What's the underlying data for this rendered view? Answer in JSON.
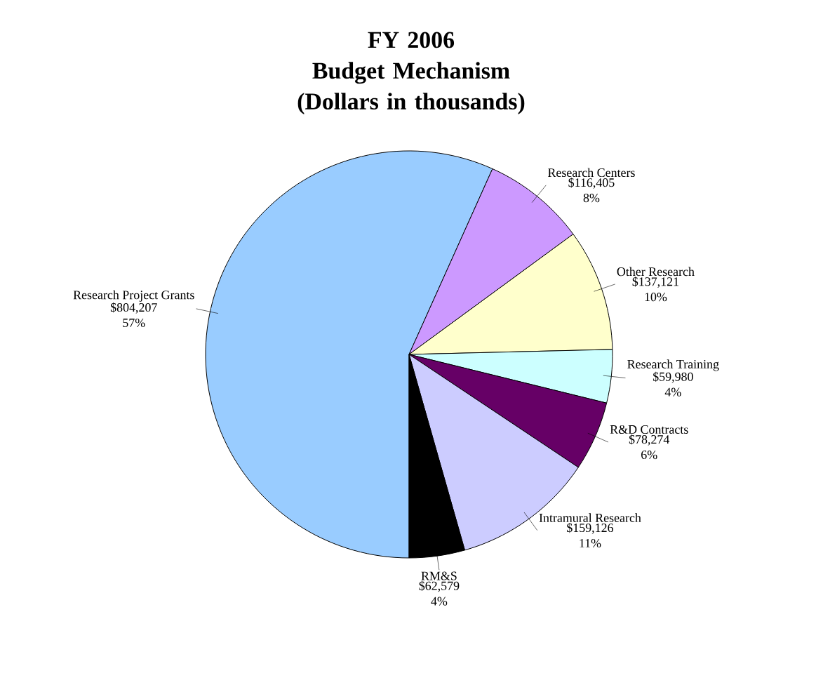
{
  "chart_data": {
    "type": "pie",
    "title": "FY 2006",
    "subtitle": "Budget Mechanism (Dollars in thousands)",
    "categories": [
      "Research Project Grants",
      "Research Centers",
      "Other Research",
      "Research Training",
      "R&D Contracts",
      "Intramural Research",
      "RM&S"
    ],
    "values": [
      804207,
      116405,
      137121,
      59980,
      78274,
      159126,
      62579
    ],
    "value_labels": [
      "$804,207 57%",
      "$116,405 8%",
      "$137,121 10%",
      "$59,980 4%",
      "$78,274 6%",
      "$159,126 11%",
      "$62,579 4%"
    ],
    "colors": [
      "#99ccff",
      "#cc99ff",
      "#ffffcc",
      "#ccffff",
      "#660066",
      "#ccccff",
      "#000000"
    ]
  }
}
